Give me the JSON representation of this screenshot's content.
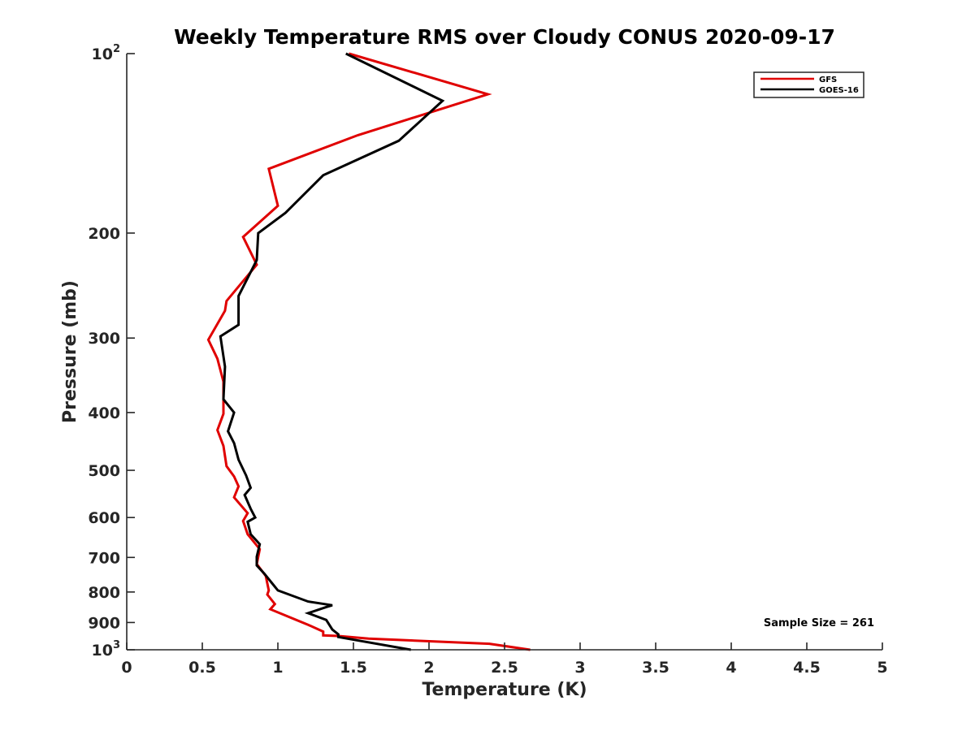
{
  "chart_data": {
    "type": "line",
    "title": "Weekly Temperature RMS over Cloudy CONUS 2020-09-17",
    "xlabel": "Temperature (K)",
    "ylabel": "Pressure (mb)",
    "xlim": [
      0,
      5
    ],
    "ylim": [
      100,
      1000
    ],
    "y_scale": "log",
    "y_reversed": true,
    "grid": false,
    "legend_location": "top-right",
    "x_ticks": [
      "0",
      "0.5",
      "1",
      "1.5",
      "2",
      "2.5",
      "3",
      "3.5",
      "4",
      "4.5",
      "5"
    ],
    "y_ticks": [
      {
        "value": 100,
        "base": "10",
        "exp": "2"
      },
      {
        "value": 200,
        "label": "200"
      },
      {
        "value": 300,
        "label": "300"
      },
      {
        "value": 400,
        "label": "400"
      },
      {
        "value": 500,
        "label": "500"
      },
      {
        "value": 600,
        "label": "600"
      },
      {
        "value": 700,
        "label": "700"
      },
      {
        "value": 800,
        "label": "800"
      },
      {
        "value": 900,
        "label": "900"
      },
      {
        "value": 1000,
        "base": "10",
        "exp": "3"
      }
    ],
    "annotation": "Sample Size = 261",
    "series": [
      {
        "name": "GFS",
        "color": "#e00000",
        "x": [
          1.47,
          2.39,
          1.53,
          0.94,
          1.0,
          0.77,
          0.86,
          0.66,
          0.65,
          0.54,
          0.6,
          0.64,
          0.64,
          0.64,
          0.6,
          0.64,
          0.66,
          0.71,
          0.74,
          0.71,
          0.8,
          0.77,
          0.8,
          0.88,
          0.86,
          0.92,
          0.94,
          0.93,
          0.98,
          0.95,
          1.05,
          1.2,
          1.3,
          1.3,
          1.4,
          1.6,
          2.4,
          2.67
        ],
        "y": [
          100,
          117,
          137,
          156,
          180,
          203,
          226,
          260,
          270,
          302,
          325,
          355,
          380,
          402,
          428,
          455,
          492,
          512,
          532,
          555,
          590,
          608,
          640,
          678,
          718,
          752,
          795,
          808,
          838,
          855,
          876,
          908,
          932,
          946,
          948,
          958,
          977,
          1000
        ]
      },
      {
        "name": "GOES-16",
        "color": "#000000",
        "x": [
          1.45,
          2.09,
          1.8,
          1.3,
          1.05,
          0.87,
          0.86,
          0.74,
          0.74,
          0.62,
          0.65,
          0.64,
          0.71,
          0.67,
          0.71,
          0.74,
          0.79,
          0.82,
          0.78,
          0.82,
          0.85,
          0.8,
          0.82,
          0.88,
          0.86,
          0.86,
          0.91,
          0.97,
          1.0,
          1.2,
          1.36,
          1.32,
          1.2,
          1.32,
          1.36,
          1.4,
          1.4,
          1.88
        ],
        "y": [
          100,
          120,
          140,
          160,
          185,
          200,
          222,
          255,
          285,
          298,
          335,
          380,
          400,
          430,
          450,
          480,
          510,
          535,
          550,
          580,
          600,
          610,
          640,
          665,
          698,
          722,
          745,
          778,
          795,
          830,
          842,
          848,
          868,
          891,
          925,
          942,
          952,
          1000
        ]
      }
    ]
  }
}
